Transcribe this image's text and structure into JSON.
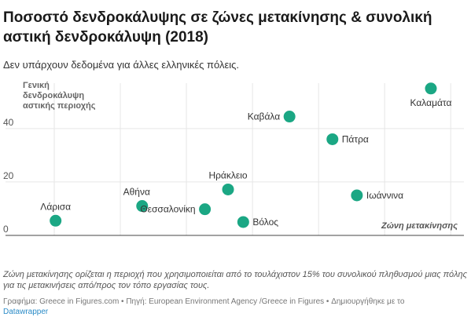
{
  "header": {
    "title": "Ποσοστό δενδροκάλυψης σε ζώνες μετακίνησης & συνολική αστική δενδροκάλυψη (2018)",
    "subtitle": "Δεν υπάρχουν δεδομένα για άλλες ελληνικές πόλεις."
  },
  "footer": {
    "note": "Ζώνη μετακίνησης ορίζεται η περιοχή που χρησιμοποιείται από το τουλάχιστον 15% του συνολικού πληθυσμού μιας πόλης για τις μετακινήσεις από/προς τον τόπο εργασίας τους.",
    "credits": "Γραφήμα: Greece in Figures.com • Πηγή: European Environment Agency /Greece in Figures • Δημιουργήθηκε με το",
    "tool_link": "Datawrapper"
  },
  "chart_data": {
    "type": "scatter",
    "xlabel": "Ζώνη μετακίνησης",
    "ylabel_lines": [
      "Γενική",
      "δενδροκάλυψη",
      "αστικής περιοχής"
    ],
    "xlim": [
      5,
      72
    ],
    "ylim": [
      0,
      57
    ],
    "x_ticks": [
      10,
      20,
      30,
      40,
      50,
      60,
      70
    ],
    "y_ticks": [
      0,
      20,
      40
    ],
    "grid": true,
    "marker_color": "#1ba784",
    "points": [
      {
        "label": "Λάρισα",
        "x": 10.2,
        "y": 5.5,
        "label_pos": "above"
      },
      {
        "label": "Αθήνα",
        "x": 23.3,
        "y": 11,
        "label_pos": "above-left"
      },
      {
        "label": "Θεσσαλονίκη",
        "x": 32.8,
        "y": 9.8,
        "label_pos": "left"
      },
      {
        "label": "Ηράκλειο",
        "x": 36.3,
        "y": 17.2,
        "label_pos": "above"
      },
      {
        "label": "Βόλος",
        "x": 38.6,
        "y": 5,
        "label_pos": "right"
      },
      {
        "label": "Καβάλα",
        "x": 45.6,
        "y": 44.5,
        "label_pos": "left"
      },
      {
        "label": "Πάτρα",
        "x": 52.1,
        "y": 36,
        "label_pos": "right"
      },
      {
        "label": "Ιωάννινα",
        "x": 55.8,
        "y": 15,
        "label_pos": "right"
      },
      {
        "label": "Καλαμάτα",
        "x": 67,
        "y": 55,
        "label_pos": "below"
      }
    ]
  }
}
